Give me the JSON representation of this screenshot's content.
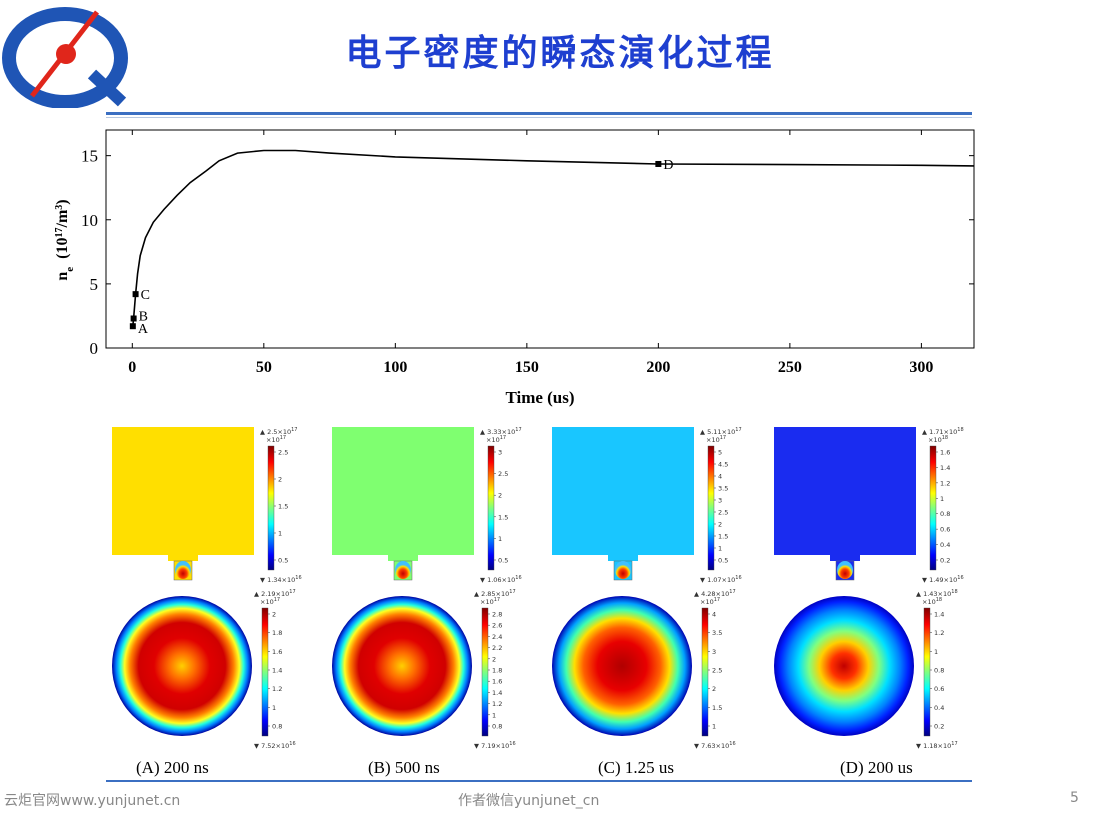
{
  "slide": {
    "title": "电子密度的瞬态演化过程",
    "footer_left": "云炬官网www.yunjunet.cn",
    "footer_mid": "作者微信yunjunet_cn",
    "page_number": "5",
    "brand_color": "#1e3fd0"
  },
  "chart_data": {
    "type": "line",
    "xlabel": "Time  (us)",
    "ylabel": "n",
    "ylabel_subscript": "e",
    "ylabel_units_pre": "  (10",
    "ylabel_units_exp": "17",
    "ylabel_units_mid": "/m",
    "ylabel_units_exp2": "3",
    "ylabel_units_post": ")",
    "xlim": [
      -10,
      320
    ],
    "ylim": [
      0,
      17
    ],
    "xticks": [
      0,
      50,
      100,
      150,
      200,
      250,
      300
    ],
    "yticks": [
      0,
      5,
      10,
      15
    ],
    "grid": false,
    "series": [
      {
        "x": [
          0.2,
          0.5,
          1.25,
          2,
          3,
          5,
          8,
          12,
          17,
          22,
          28,
          33,
          40,
          50,
          62,
          75,
          100,
          150,
          200,
          250,
          300,
          320
        ],
        "y": [
          1.7,
          2.3,
          4.2,
          5.8,
          7.2,
          8.6,
          9.8,
          10.8,
          11.9,
          12.9,
          13.8,
          14.6,
          15.2,
          15.4,
          15.4,
          15.2,
          14.9,
          14.6,
          14.35,
          14.3,
          14.25,
          14.2
        ]
      }
    ],
    "markers": [
      {
        "label": "A",
        "x": 0.2,
        "y": 1.7
      },
      {
        "label": "B",
        "x": 0.5,
        "y": 2.3
      },
      {
        "label": "C",
        "x": 1.25,
        "y": 4.2
      },
      {
        "label": "D",
        "x": 200,
        "y": 14.35
      }
    ]
  },
  "density_maps": [
    {
      "caption": "(A) 200 ns",
      "top": {
        "max": "2.5×10",
        "max_exp": "17",
        "unit": "×10",
        "unit_exp": "17",
        "min": "1.34×10",
        "min_exp": "16",
        "ticks": [
          "2.5",
          "2",
          "1.5",
          "1",
          "0.5"
        ],
        "bg": "#ffdf00"
      },
      "bottom": {
        "max": "2.19×10",
        "max_exp": "17",
        "unit": "×10",
        "unit_exp": "17",
        "min": "7.52×10",
        "min_exp": "16",
        "ticks": [
          "2",
          "1.8",
          "1.6",
          "1.4",
          "1.2",
          "1",
          "0.8"
        ],
        "profile": "hot-center"
      }
    },
    {
      "caption": "(B) 500 ns",
      "top": {
        "max": "3.33×10",
        "max_exp": "17",
        "unit": "×10",
        "unit_exp": "17",
        "min": "1.06×10",
        "min_exp": "16",
        "ticks": [
          "3",
          "2.5",
          "2",
          "1.5",
          "1",
          "0.5"
        ],
        "bg": "#7fff70"
      },
      "bottom": {
        "max": "2.85×10",
        "max_exp": "17",
        "unit": "×10",
        "unit_exp": "17",
        "min": "7.19×10",
        "min_exp": "16",
        "ticks": [
          "2.8",
          "2.6",
          "2.4",
          "2.2",
          "2",
          "1.8",
          "1.6",
          "1.4",
          "1.2",
          "1",
          "0.8"
        ],
        "profile": "hot-center"
      }
    },
    {
      "caption": "(C) 1.25 us",
      "top": {
        "max": "5.11×10",
        "max_exp": "17",
        "unit": "×10",
        "unit_exp": "17",
        "min": "1.07×10",
        "min_exp": "16",
        "ticks": [
          "5",
          "4.5",
          "4",
          "3.5",
          "3",
          "2.5",
          "2",
          "1.5",
          "1",
          "0.5"
        ],
        "bg": "#19c6ff"
      },
      "bottom": {
        "max": "4.28×10",
        "max_exp": "17",
        "unit": "×10",
        "unit_exp": "17",
        "min": "7.63×10",
        "min_exp": "16",
        "ticks": [
          "4",
          "3.5",
          "3",
          "2.5",
          "2",
          "1.5",
          "1"
        ],
        "profile": "red-center"
      }
    },
    {
      "caption": "(D) 200 us",
      "top": {
        "max": "1.71×10",
        "max_exp": "18",
        "unit": "×10",
        "unit_exp": "18",
        "min": "1.49×10",
        "min_exp": "16",
        "ticks": [
          "1.6",
          "1.4",
          "1.2",
          "1",
          "0.8",
          "0.6",
          "0.4",
          "0.2"
        ],
        "bg": "#1a2cf0"
      },
      "bottom": {
        "max": "1.43×10",
        "max_exp": "18",
        "unit": "×10",
        "unit_exp": "18",
        "min": "1.18×10",
        "min_exp": "17",
        "ticks": [
          "1.4",
          "1.2",
          "1",
          "0.8",
          "0.6",
          "0.4",
          "0.2"
        ],
        "profile": "cool-center"
      }
    }
  ]
}
